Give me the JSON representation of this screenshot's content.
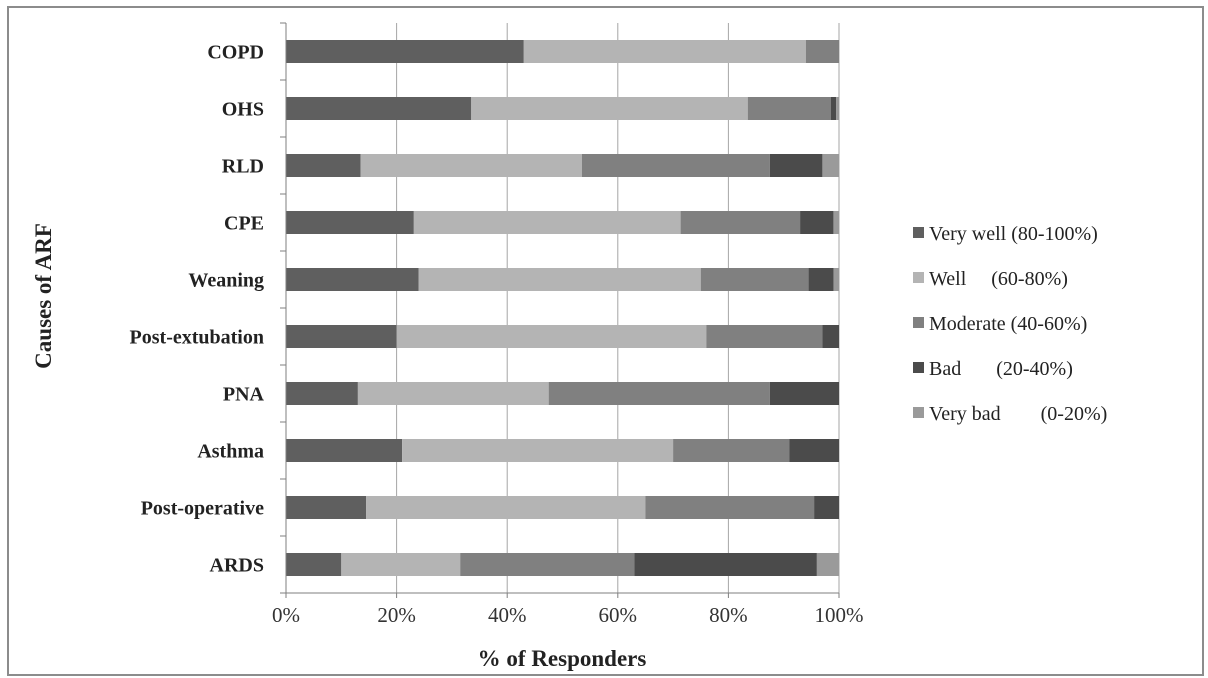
{
  "chart_data": {
    "type": "bar",
    "orientation": "horizontal",
    "stacked": "percent",
    "title": "",
    "xlabel": "% of Responders",
    "ylabel": "Causes of ARF",
    "xlim": [
      0,
      100
    ],
    "x_ticks": [
      "0%",
      "20%",
      "40%",
      "60%",
      "80%",
      "100%"
    ],
    "grid": "vertical",
    "legend_position": "right",
    "categories": [
      "COPD",
      "OHS",
      "RLD",
      "CPE",
      "Weaning",
      "Post-extubation",
      "PNA",
      "Asthma",
      "Post-operative",
      "ARDS"
    ],
    "series": [
      {
        "name": "Very well (80-100%)",
        "color": "#5f5f5f",
        "values": [
          43,
          33.5,
          13.5,
          23,
          24,
          20,
          13,
          21,
          14.5,
          10
        ]
      },
      {
        "name": "Well     (60-80%)",
        "color": "#b4b4b4",
        "values": [
          51,
          50,
          40,
          48,
          51,
          56,
          34.5,
          49,
          50.5,
          21.5
        ]
      },
      {
        "name": "Moderate (40-60%)",
        "color": "#808080",
        "values": [
          6,
          15,
          34,
          21.5,
          19.5,
          21,
          40,
          21,
          30.5,
          31.5
        ]
      },
      {
        "name": "Bad       (20-40%)",
        "color": "#4b4b4b",
        "values": [
          0,
          1,
          9.5,
          6,
          4.5,
          3,
          12.5,
          9,
          4.5,
          33
        ]
      },
      {
        "name": "Very bad        (0-20%)",
        "color": "#9a9a9a",
        "values": [
          0,
          0.5,
          3,
          1,
          1,
          0,
          0,
          0,
          0,
          4
        ]
      }
    ]
  }
}
